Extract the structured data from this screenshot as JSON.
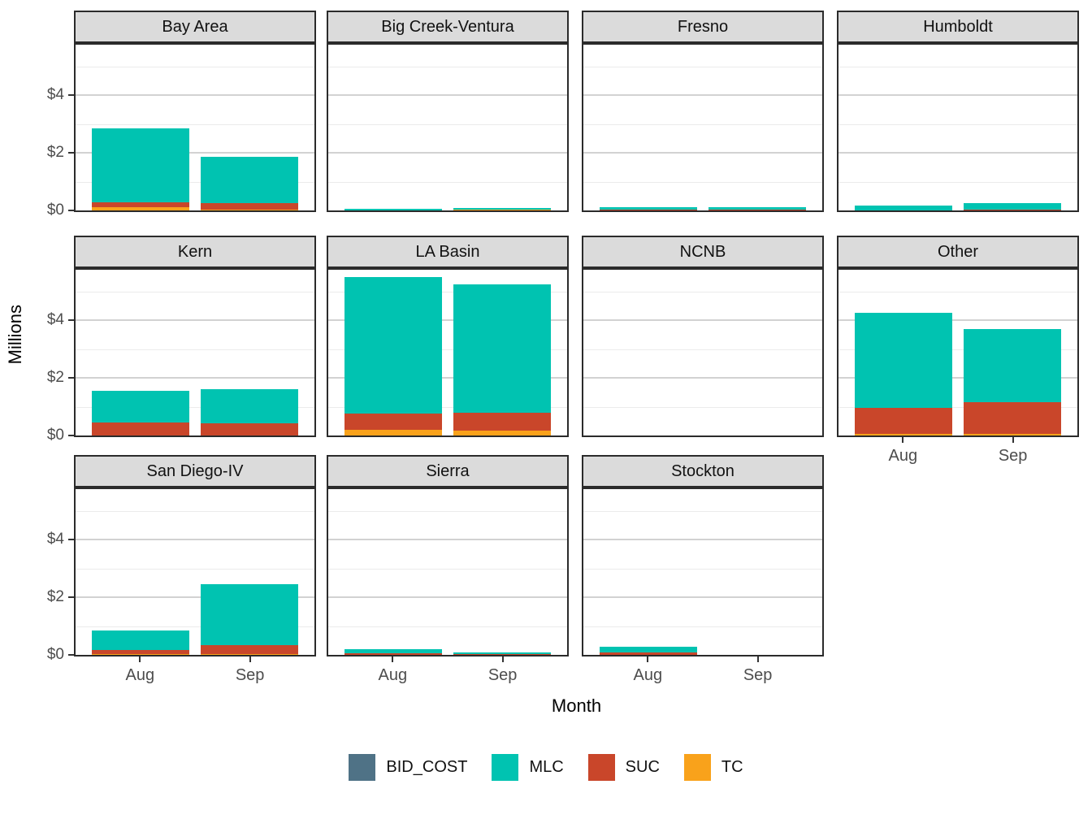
{
  "figure": {
    "ylabel": "Millions",
    "xlabel": "Month"
  },
  "chart_data": {
    "type": "bar",
    "stacked": true,
    "unit": "millions of dollars",
    "categories": [
      "Aug",
      "Sep"
    ],
    "y_ticks": [
      {
        "value": 0,
        "label": "$0"
      },
      {
        "value": 2,
        "label": "$2"
      },
      {
        "value": 4,
        "label": "$4"
      }
    ],
    "ylim": [
      0,
      5.75
    ],
    "grid": "major 2,4 and minor 1,3,5",
    "legend_position": "bottom",
    "stack_order_bottom_to_top": [
      "TC",
      "SUC",
      "MLC",
      "BID_COST"
    ],
    "legend": [
      {
        "name": "BID_COST",
        "color": "#4f7286"
      },
      {
        "name": "MLC",
        "color": "#00c3b1"
      },
      {
        "name": "SUC",
        "color": "#c9462a"
      },
      {
        "name": "TC",
        "color": "#f9a21b"
      }
    ],
    "facets": [
      {
        "label": "Bay Area",
        "bars": [
          {
            "month": "Aug",
            "BID_COST": 0,
            "MLC": 2.55,
            "SUC": 0.19,
            "TC": 0.1
          },
          {
            "month": "Sep",
            "BID_COST": 0,
            "MLC": 1.6,
            "SUC": 0.22,
            "TC": 0.02
          }
        ]
      },
      {
        "label": "Big Creek-Ventura",
        "bars": [
          {
            "month": "Aug",
            "BID_COST": 0,
            "MLC": 0.07,
            "SUC": 0,
            "TC": 0
          },
          {
            "month": "Sep",
            "BID_COST": 0,
            "MLC": 0.03,
            "SUC": 0,
            "TC": 0.02
          }
        ]
      },
      {
        "label": "Fresno",
        "bars": [
          {
            "month": "Aug",
            "BID_COST": 0,
            "MLC": 0.06,
            "SUC": 0.02,
            "TC": 0
          },
          {
            "month": "Sep",
            "BID_COST": 0,
            "MLC": 0.06,
            "SUC": 0.02,
            "TC": 0
          }
        ]
      },
      {
        "label": "Humboldt",
        "bars": [
          {
            "month": "Aug",
            "BID_COST": 0,
            "MLC": 0.18,
            "SUC": 0,
            "TC": 0
          },
          {
            "month": "Sep",
            "BID_COST": 0,
            "MLC": 0.22,
            "SUC": 0.03,
            "TC": 0
          }
        ]
      },
      {
        "label": "Kern",
        "bars": [
          {
            "month": "Aug",
            "BID_COST": 0,
            "MLC": 1.1,
            "SUC": 0.45,
            "TC": 0
          },
          {
            "month": "Sep",
            "BID_COST": 0,
            "MLC": 1.18,
            "SUC": 0.42,
            "TC": 0
          }
        ]
      },
      {
        "label": "LA Basin",
        "bars": [
          {
            "month": "Aug",
            "BID_COST": 0,
            "MLC": 4.75,
            "SUC": 0.55,
            "TC": 0.2
          },
          {
            "month": "Sep",
            "BID_COST": 0,
            "MLC": 4.45,
            "SUC": 0.6,
            "TC": 0.18
          }
        ]
      },
      {
        "label": "NCNB",
        "bars": [
          {
            "month": "Aug",
            "BID_COST": 0,
            "MLC": 0,
            "SUC": 0,
            "TC": 0
          },
          {
            "month": "Sep",
            "BID_COST": 0,
            "MLC": 0,
            "SUC": 0,
            "TC": 0
          }
        ]
      },
      {
        "label": "Other",
        "bars": [
          {
            "month": "Aug",
            "BID_COST": 0,
            "MLC": 3.3,
            "SUC": 0.9,
            "TC": 0.05
          },
          {
            "month": "Sep",
            "BID_COST": 0,
            "MLC": 2.55,
            "SUC": 1.1,
            "TC": 0.05
          }
        ]
      },
      {
        "label": "San Diego-IV",
        "bars": [
          {
            "month": "Aug",
            "BID_COST": 0,
            "MLC": 0.67,
            "SUC": 0.14,
            "TC": 0.04
          },
          {
            "month": "Sep",
            "BID_COST": 0,
            "MLC": 2.1,
            "SUC": 0.3,
            "TC": 0.03
          }
        ]
      },
      {
        "label": "Sierra",
        "bars": [
          {
            "month": "Aug",
            "BID_COST": 0,
            "MLC": 0.15,
            "SUC": 0.05,
            "TC": 0
          },
          {
            "month": "Sep",
            "BID_COST": 0,
            "MLC": 0.03,
            "SUC": 0.01,
            "TC": 0
          }
        ]
      },
      {
        "label": "Stockton",
        "bars": [
          {
            "month": "Aug",
            "BID_COST": 0,
            "MLC": 0.2,
            "SUC": 0.08,
            "TC": 0
          },
          {
            "month": "Sep",
            "BID_COST": 0,
            "MLC": 0,
            "SUC": 0,
            "TC": 0
          }
        ]
      }
    ]
  }
}
